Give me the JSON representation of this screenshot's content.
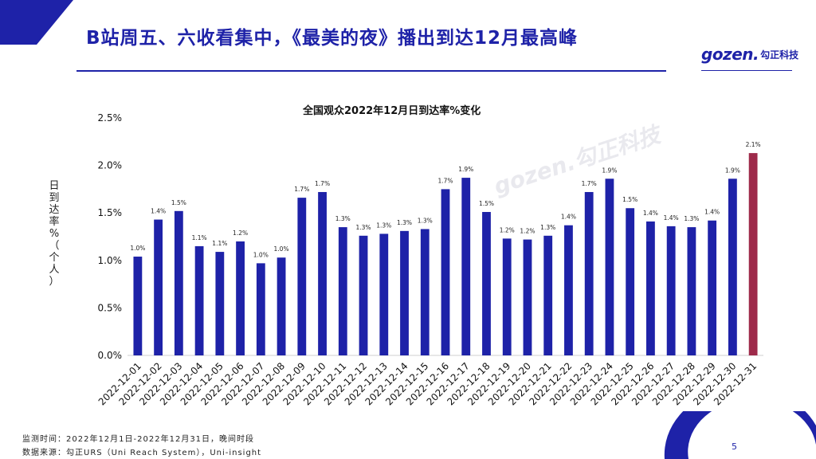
{
  "header": {
    "title": "B站周五、六收看集中，《最美的夜》播出到达12月最高峰",
    "logo_main": "gozen.",
    "logo_sub": "勾正科技"
  },
  "watermark": "gozen.勾正科技",
  "chart_data": {
    "type": "bar",
    "title": "全国观众2022年12月日到达率%变化",
    "ylabel": "日到达率%（个人）",
    "xlabel": "",
    "ylim": [
      0,
      2.5
    ],
    "yticks": [
      "0.0%",
      "0.5%",
      "1.0%",
      "1.5%",
      "2.0%",
      "2.5%"
    ],
    "ytick_values": [
      0,
      0.5,
      1.0,
      1.5,
      2.0,
      2.5
    ],
    "grid": false,
    "categories": [
      "2022-12-01",
      "2022-12-02",
      "2022-12-03",
      "2022-12-04",
      "2022-12-05",
      "2022-12-06",
      "2022-12-07",
      "2022-12-08",
      "2022-12-09",
      "2022-12-10",
      "2022-12-11",
      "2022-12-12",
      "2022-12-13",
      "2022-12-14",
      "2022-12-15",
      "2022-12-16",
      "2022-12-17",
      "2022-12-18",
      "2022-12-19",
      "2022-12-20",
      "2022-12-21",
      "2022-12-22",
      "2022-12-23",
      "2022-12-24",
      "2022-12-25",
      "2022-12-26",
      "2022-12-27",
      "2022-12-28",
      "2022-12-29",
      "2022-12-30",
      "2022-12-31"
    ],
    "values": [
      1.04,
      1.43,
      1.52,
      1.15,
      1.09,
      1.2,
      0.97,
      1.03,
      1.66,
      1.72,
      1.35,
      1.26,
      1.28,
      1.31,
      1.33,
      1.75,
      1.87,
      1.51,
      1.23,
      1.22,
      1.26,
      1.37,
      1.72,
      1.86,
      1.55,
      1.41,
      1.36,
      1.35,
      1.42,
      1.86,
      2.13
    ],
    "labels": [
      "1.0%",
      "1.4%",
      "1.5%",
      "1.1%",
      "1.1%",
      "1.2%",
      "1.0%",
      "1.0%",
      "1.7%",
      "1.7%",
      "1.3%",
      "1.3%",
      "1.3%",
      "1.3%",
      "1.3%",
      "1.7%",
      "1.9%",
      "1.5%",
      "1.2%",
      "1.2%",
      "1.3%",
      "1.4%",
      "1.7%",
      "1.9%",
      "1.5%",
      "1.4%",
      "1.4%",
      "1.3%",
      "1.4%",
      "1.9%",
      "2.1%"
    ],
    "colors": {
      "default": "#1e22a8",
      "highlight": "#9e2a4a"
    },
    "highlight_index": 30
  },
  "footer": {
    "period": "监测时间：2022年12月1日-2022年12月31日，晚间时段",
    "source": "数据来源：勾正URS（Uni Reach System），Uni-insight"
  },
  "page_number": "5"
}
